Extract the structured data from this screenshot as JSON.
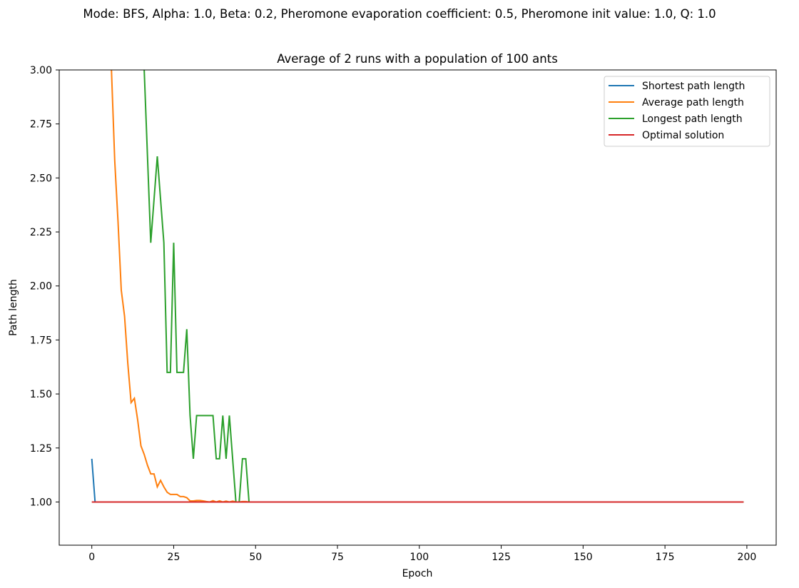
{
  "suptitle": "Mode: BFS, Alpha: 1.0, Beta: 0.2, Pheromone evaporation coefficient: 0.5, Pheromone init value: 1.0, Q: 1.0",
  "chart_data": {
    "type": "line",
    "title": "Average of 2 runs with a population of 100 ants",
    "xlabel": "Epoch",
    "ylabel": "Path length",
    "xlim": [
      -9.95,
      208.95
    ],
    "ylim": [
      0.8,
      3.0
    ],
    "xticks": [
      0,
      25,
      50,
      75,
      100,
      125,
      150,
      175,
      200
    ],
    "xtick_labels": [
      "0",
      "25",
      "50",
      "75",
      "100",
      "125",
      "150",
      "175",
      "200"
    ],
    "yticks": [
      1.0,
      1.25,
      1.5,
      1.75,
      2.0,
      2.25,
      2.5,
      2.75,
      3.0
    ],
    "ytick_labels": [
      "1.00",
      "1.25",
      "1.50",
      "1.75",
      "2.00",
      "2.25",
      "2.50",
      "2.75",
      "3.00"
    ],
    "grid": false,
    "legend_position": "top-right",
    "series": [
      {
        "name": "Shortest path length",
        "color": "#1f77b4",
        "x": [
          0,
          1,
          199
        ],
        "y": [
          1.2,
          1.0,
          1.0
        ]
      },
      {
        "name": "Average path length",
        "color": "#ff7f0e",
        "x": [
          5,
          6,
          7,
          8,
          9,
          10,
          11,
          12,
          13,
          14,
          15,
          16,
          17,
          18,
          19,
          20,
          21,
          22,
          23,
          24,
          25,
          26,
          27,
          28,
          29,
          30,
          31,
          32,
          33,
          34,
          35,
          36,
          37,
          38,
          39,
          40,
          41,
          42,
          43,
          44,
          45,
          46,
          47,
          48,
          199
        ],
        "y": [
          3.3,
          3.0,
          2.58,
          2.3,
          1.98,
          1.86,
          1.64,
          1.46,
          1.48,
          1.38,
          1.26,
          1.22,
          1.17,
          1.13,
          1.13,
          1.07,
          1.1,
          1.07,
          1.045,
          1.035,
          1.035,
          1.035,
          1.025,
          1.025,
          1.02,
          1.005,
          1.005,
          1.007,
          1.007,
          1.005,
          1.002,
          1.0,
          1.006,
          1.0,
          1.005,
          1.0,
          1.004,
          1.0,
          1.004,
          1.0,
          1.0,
          1.002,
          1.002,
          1.0,
          1.0
        ]
      },
      {
        "name": "Longest path length",
        "color": "#2ca02c",
        "x": [
          15,
          16,
          17,
          18,
          19,
          20,
          21,
          22,
          23,
          24,
          25,
          26,
          27,
          28,
          29,
          30,
          31,
          32,
          33,
          34,
          35,
          36,
          37,
          38,
          39,
          40,
          41,
          42,
          43,
          44,
          45,
          46,
          47,
          48,
          199
        ],
        "y": [
          3.4,
          3.0,
          2.6,
          2.2,
          2.4,
          2.6,
          2.4,
          2.2,
          1.6,
          1.6,
          2.2,
          1.6,
          1.6,
          1.6,
          1.8,
          1.4,
          1.2,
          1.4,
          1.4,
          1.4,
          1.4,
          1.4,
          1.4,
          1.2,
          1.2,
          1.4,
          1.2,
          1.4,
          1.2,
          1.0,
          1.0,
          1.2,
          1.2,
          1.0,
          1.0
        ]
      },
      {
        "name": "Optimal solution",
        "color": "#d62728",
        "x": [
          0,
          199
        ],
        "y": [
          1.0,
          1.0
        ]
      }
    ]
  }
}
